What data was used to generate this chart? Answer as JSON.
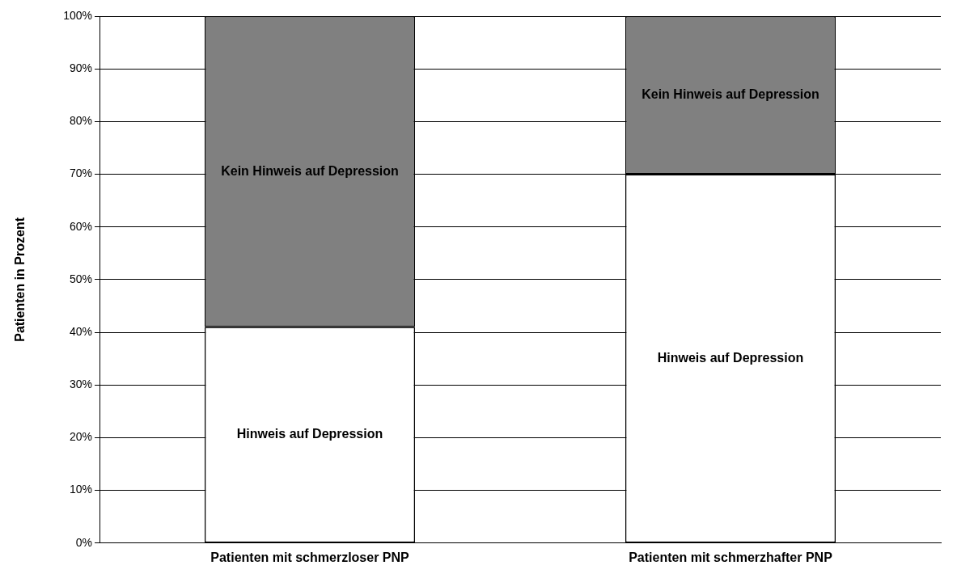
{
  "chart_data": {
    "type": "bar",
    "stacked": true,
    "ylabel": "Patienten in Prozent",
    "categories": [
      "Patienten mit schmerzloser PNP",
      "Patienten mit schmerzhafter PNP"
    ],
    "series": [
      {
        "name": "Hinweis auf Depression",
        "color": "#ffffff",
        "values": [
          41,
          70
        ]
      },
      {
        "name": "Kein Hinweis auf Depression",
        "color": "#808080",
        "values": [
          59,
          30
        ]
      }
    ],
    "ylim": [
      0,
      100
    ],
    "yticks": [
      {
        "value": 0,
        "label": "0%"
      },
      {
        "value": 10,
        "label": "10%"
      },
      {
        "value": 20,
        "label": "20%"
      },
      {
        "value": 30,
        "label": "30%"
      },
      {
        "value": 40,
        "label": "40%"
      },
      {
        "value": 50,
        "label": "50%"
      },
      {
        "value": 60,
        "label": "60%"
      },
      {
        "value": 70,
        "label": "70%"
      },
      {
        "value": 80,
        "label": "80%"
      },
      {
        "value": 90,
        "label": "90%"
      },
      {
        "value": 100,
        "label": "100%"
      }
    ],
    "grid": "y",
    "legend": false
  }
}
